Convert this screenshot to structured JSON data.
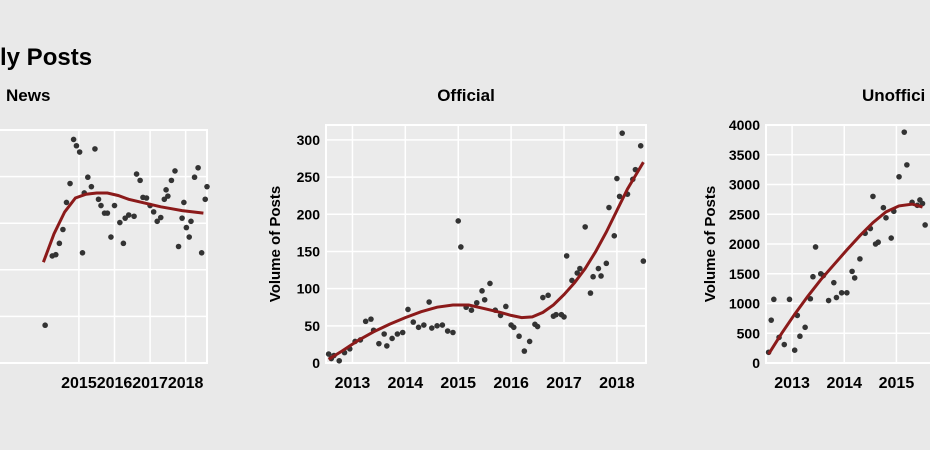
{
  "figure": {
    "title": "ly Posts"
  },
  "chart_data": [
    {
      "type": "scatter",
      "title": "News",
      "xlabel": "",
      "ylabel": "",
      "x_ticks": [
        "2015",
        "2016",
        "2017",
        "2018"
      ],
      "xlim": [
        2012.5,
        2018.6
      ],
      "ylim": [
        0,
        370
      ],
      "y_ticks": [],
      "points_color": "#333333",
      "trend_color": "#8b1a1a",
      "points": [
        [
          2014.05,
          60
        ],
        [
          2014.25,
          170
        ],
        [
          2014.35,
          172
        ],
        [
          2014.45,
          190
        ],
        [
          2014.55,
          212
        ],
        [
          2014.65,
          255
        ],
        [
          2014.75,
          285
        ],
        [
          2014.85,
          355
        ],
        [
          2014.93,
          345
        ],
        [
          2015.02,
          335
        ],
        [
          2015.1,
          175
        ],
        [
          2015.15,
          270
        ],
        [
          2015.25,
          295
        ],
        [
          2015.35,
          280
        ],
        [
          2015.45,
          340
        ],
        [
          2015.55,
          260
        ],
        [
          2015.62,
          250
        ],
        [
          2015.72,
          238
        ],
        [
          2015.8,
          238
        ],
        [
          2015.9,
          200
        ],
        [
          2016.0,
          250
        ],
        [
          2016.15,
          223
        ],
        [
          2016.25,
          190
        ],
        [
          2016.3,
          230
        ],
        [
          2016.4,
          235
        ],
        [
          2016.55,
          233
        ],
        [
          2016.62,
          300
        ],
        [
          2016.72,
          290
        ],
        [
          2016.8,
          263
        ],
        [
          2016.9,
          262
        ],
        [
          2017.0,
          250
        ],
        [
          2017.1,
          240
        ],
        [
          2017.2,
          225
        ],
        [
          2017.3,
          231
        ],
        [
          2017.4,
          260
        ],
        [
          2017.45,
          275
        ],
        [
          2017.5,
          265
        ],
        [
          2017.6,
          290
        ],
        [
          2017.7,
          305
        ],
        [
          2017.8,
          185
        ],
        [
          2017.9,
          230
        ],
        [
          2017.95,
          255
        ],
        [
          2018.02,
          215
        ],
        [
          2018.1,
          200
        ],
        [
          2018.15,
          225
        ],
        [
          2018.25,
          295
        ],
        [
          2018.35,
          310
        ],
        [
          2018.45,
          175
        ],
        [
          2018.55,
          260
        ],
        [
          2018.6,
          280
        ]
      ],
      "trend": [
        [
          2014.0,
          160
        ],
        [
          2014.3,
          205
        ],
        [
          2014.6,
          240
        ],
        [
          2014.9,
          262
        ],
        [
          2015.2,
          268
        ],
        [
          2015.5,
          270
        ],
        [
          2015.8,
          270
        ],
        [
          2016.1,
          266
        ],
        [
          2016.4,
          260
        ],
        [
          2016.7,
          256
        ],
        [
          2017.0,
          252
        ],
        [
          2017.3,
          248
        ],
        [
          2017.6,
          245
        ],
        [
          2017.9,
          242
        ],
        [
          2018.2,
          240
        ],
        [
          2018.5,
          238
        ]
      ]
    },
    {
      "type": "scatter",
      "title": "Official",
      "xlabel": "",
      "ylabel": "Volume of Posts",
      "x_ticks": [
        "2013",
        "2014",
        "2015",
        "2016",
        "2017",
        "2018"
      ],
      "y_ticks": [
        "0",
        "50",
        "100",
        "150",
        "200",
        "250",
        "300"
      ],
      "xlim": [
        2012.5,
        2018.55
      ],
      "ylim": [
        0,
        320
      ],
      "points_color": "#333333",
      "trend_color": "#8b1a1a",
      "points": [
        [
          2012.55,
          12
        ],
        [
          2012.6,
          6
        ],
        [
          2012.65,
          10
        ],
        [
          2012.75,
          3
        ],
        [
          2012.85,
          14
        ],
        [
          2012.95,
          19
        ],
        [
          2013.05,
          29
        ],
        [
          2013.15,
          31
        ],
        [
          2013.25,
          56
        ],
        [
          2013.35,
          59
        ],
        [
          2013.4,
          44
        ],
        [
          2013.5,
          26
        ],
        [
          2013.6,
          39
        ],
        [
          2013.65,
          23
        ],
        [
          2013.75,
          33
        ],
        [
          2013.85,
          39
        ],
        [
          2013.95,
          41
        ],
        [
          2014.05,
          72
        ],
        [
          2014.15,
          55
        ],
        [
          2014.25,
          48
        ],
        [
          2014.35,
          51
        ],
        [
          2014.45,
          82
        ],
        [
          2014.5,
          47
        ],
        [
          2014.6,
          50
        ],
        [
          2014.7,
          51
        ],
        [
          2014.8,
          43
        ],
        [
          2014.9,
          41
        ],
        [
          2015.0,
          191
        ],
        [
          2015.05,
          156
        ],
        [
          2015.15,
          75
        ],
        [
          2015.25,
          71
        ],
        [
          2015.35,
          81
        ],
        [
          2015.45,
          97
        ],
        [
          2015.5,
          85
        ],
        [
          2015.6,
          107
        ],
        [
          2015.7,
          71
        ],
        [
          2015.8,
          64
        ],
        [
          2015.9,
          76
        ],
        [
          2016.0,
          51
        ],
        [
          2016.05,
          48
        ],
        [
          2016.15,
          36
        ],
        [
          2016.25,
          16
        ],
        [
          2016.35,
          29
        ],
        [
          2016.45,
          52
        ],
        [
          2016.5,
          49
        ],
        [
          2016.6,
          88
        ],
        [
          2016.7,
          91
        ],
        [
          2016.8,
          63
        ],
        [
          2016.85,
          65
        ],
        [
          2016.95,
          65
        ],
        [
          2017.0,
          62
        ],
        [
          2017.05,
          144
        ],
        [
          2017.15,
          111
        ],
        [
          2017.25,
          121
        ],
        [
          2017.3,
          127
        ],
        [
          2017.4,
          183
        ],
        [
          2017.5,
          94
        ],
        [
          2017.55,
          116
        ],
        [
          2017.65,
          127
        ],
        [
          2017.7,
          117
        ],
        [
          2017.8,
          134
        ],
        [
          2017.85,
          209
        ],
        [
          2017.95,
          171
        ],
        [
          2018.0,
          248
        ],
        [
          2018.05,
          224
        ],
        [
          2018.1,
          309
        ],
        [
          2018.2,
          227
        ],
        [
          2018.3,
          247
        ],
        [
          2018.35,
          260
        ],
        [
          2018.45,
          292
        ],
        [
          2018.5,
          137
        ]
      ],
      "trend": [
        [
          2012.55,
          5
        ],
        [
          2012.8,
          16
        ],
        [
          2013.1,
          30
        ],
        [
          2013.4,
          42
        ],
        [
          2013.7,
          52
        ],
        [
          2014.0,
          61
        ],
        [
          2014.3,
          69
        ],
        [
          2014.6,
          75
        ],
        [
          2014.9,
          78
        ],
        [
          2015.2,
          78
        ],
        [
          2015.5,
          73
        ],
        [
          2015.8,
          68
        ],
        [
          2016.0,
          64
        ],
        [
          2016.2,
          61
        ],
        [
          2016.4,
          62
        ],
        [
          2016.6,
          68
        ],
        [
          2016.8,
          78
        ],
        [
          2017.0,
          92
        ],
        [
          2017.2,
          108
        ],
        [
          2017.4,
          127
        ],
        [
          2017.6,
          150
        ],
        [
          2017.8,
          176
        ],
        [
          2018.0,
          205
        ],
        [
          2018.2,
          234
        ],
        [
          2018.4,
          258
        ],
        [
          2018.5,
          270
        ]
      ]
    },
    {
      "type": "scatter",
      "title": "Unoffici",
      "xlabel": "",
      "ylabel": "Volume of Posts",
      "x_ticks": [
        "2013",
        "2014",
        "2015"
      ],
      "y_ticks": [
        "0",
        "500",
        "1000",
        "1500",
        "2000",
        "2500",
        "3000",
        "3500",
        "4000"
      ],
      "xlim": [
        2012.5,
        2015.95
      ],
      "ylim": [
        0,
        4000
      ],
      "points_color": "#333333",
      "trend_color": "#8b1a1a",
      "points": [
        [
          2012.55,
          180
        ],
        [
          2012.6,
          720
        ],
        [
          2012.65,
          1070
        ],
        [
          2012.75,
          430
        ],
        [
          2012.85,
          310
        ],
        [
          2012.95,
          1070
        ],
        [
          2013.05,
          215
        ],
        [
          2013.1,
          800
        ],
        [
          2013.15,
          450
        ],
        [
          2013.25,
          600
        ],
        [
          2013.35,
          1080
        ],
        [
          2013.4,
          1450
        ],
        [
          2013.45,
          1950
        ],
        [
          2013.55,
          1500
        ],
        [
          2013.6,
          1470
        ],
        [
          2013.7,
          1050
        ],
        [
          2013.8,
          1350
        ],
        [
          2013.85,
          1100
        ],
        [
          2013.95,
          1180
        ],
        [
          2014.05,
          1180
        ],
        [
          2014.15,
          1540
        ],
        [
          2014.2,
          1430
        ],
        [
          2014.3,
          1750
        ],
        [
          2014.4,
          2180
        ],
        [
          2014.5,
          2260
        ],
        [
          2014.55,
          2800
        ],
        [
          2014.6,
          2000
        ],
        [
          2014.65,
          2030
        ],
        [
          2014.75,
          2610
        ],
        [
          2014.8,
          2440
        ],
        [
          2014.9,
          2100
        ],
        [
          2014.95,
          2550
        ],
        [
          2015.05,
          3130
        ],
        [
          2015.15,
          3880
        ],
        [
          2015.2,
          3330
        ],
        [
          2015.3,
          2700
        ],
        [
          2015.4,
          2650
        ],
        [
          2015.45,
          2740
        ],
        [
          2015.5,
          2680
        ],
        [
          2015.55,
          2320
        ]
      ],
      "trend": [
        [
          2012.55,
          150
        ],
        [
          2012.8,
          500
        ],
        [
          2013.05,
          820
        ],
        [
          2013.3,
          1120
        ],
        [
          2013.55,
          1400
        ],
        [
          2013.8,
          1650
        ],
        [
          2014.05,
          1900
        ],
        [
          2014.3,
          2140
        ],
        [
          2014.55,
          2360
        ],
        [
          2014.8,
          2540
        ],
        [
          2015.05,
          2640
        ],
        [
          2015.3,
          2670
        ],
        [
          2015.5,
          2620
        ]
      ]
    }
  ]
}
